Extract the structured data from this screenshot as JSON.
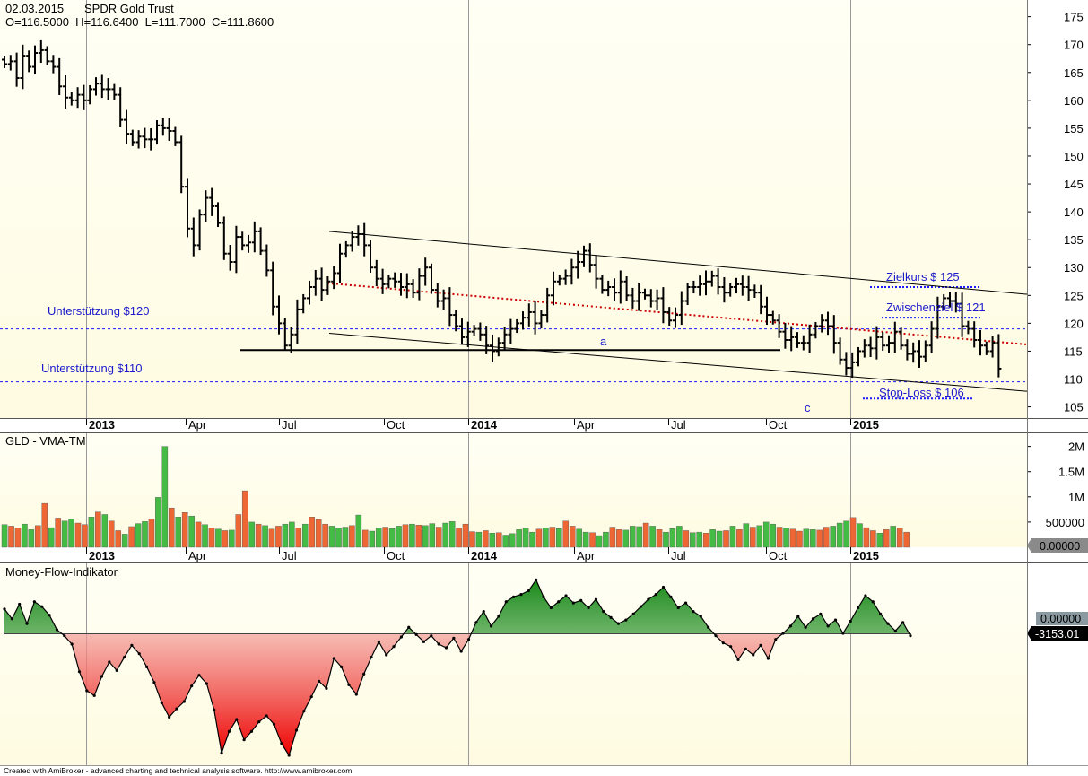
{
  "header": {
    "date": "02.03.2015",
    "symbol": "SPDR Gold Trust",
    "ohlc": "O=116.5000  H=116.6400  L=111.7000  C=111.8600"
  },
  "footer": {
    "credit": "Created with AmiBroker - advanced charting and technical analysis software. http://www.amibroker.com"
  },
  "colors": {
    "pane_background_top": "#fffff2",
    "pane_background_bottom": "#fffbe0",
    "bars": "#000000",
    "support_lines": "#1a1aff",
    "annotation_text": "#1a1acc",
    "trend_channel": "#000000",
    "mid_trend": "#cc0000",
    "volume_up": "#44bb44",
    "volume_down": "#ee6633",
    "mfi_positive": "#1a8a1a",
    "mfi_negative": "#e00000"
  },
  "chart_data": [
    {
      "type": "ohlc",
      "title": "SPDR Gold Trust",
      "x_tick_labels": [
        "2013",
        "Apr",
        "Jul",
        "Oct",
        "2014",
        "Apr",
        "Jul",
        "Oct",
        "2015"
      ],
      "x_major_labels": [
        "2013",
        "2014",
        "2015"
      ],
      "y_tick_labels": [
        "105",
        "110",
        "115",
        "120",
        "125",
        "130",
        "135",
        "140",
        "145",
        "150",
        "155",
        "160",
        "165",
        "170",
        "175"
      ],
      "ylim": [
        103,
        178
      ],
      "grid": "vertical lines at year starts",
      "series_close": [
        166.5,
        167.0,
        164.0,
        168.0,
        166.0,
        168.5,
        169.0,
        167.0,
        166.0,
        162.5,
        160.5,
        160.0,
        161.0,
        160.0,
        162.0,
        163.0,
        162.0,
        162.0,
        161.0,
        156.5,
        154.0,
        152.5,
        153.5,
        153.0,
        153.0,
        155.5,
        155.0,
        154.5,
        152.5,
        144.5,
        137.0,
        134.0,
        139.5,
        142.5,
        141.0,
        138.0,
        132.5,
        131.0,
        135.5,
        134.0,
        134.5,
        136.5,
        133.0,
        129.5,
        123.0,
        120.0,
        116.0,
        118.0,
        122.5,
        124.5,
        126.5,
        128.0,
        126.0,
        127.5,
        129.0,
        132.5,
        134.0,
        135.5,
        136.0,
        134.0,
        130.0,
        128.0,
        127.0,
        128.0,
        127.5,
        126.5,
        127.0,
        125.5,
        128.5,
        130.0,
        126.0,
        124.0,
        124.5,
        121.5,
        119.5,
        117.5,
        118.5,
        119.0,
        118.0,
        116.0,
        115.0,
        116.5,
        118.0,
        119.0,
        120.0,
        121.0,
        122.0,
        120.0,
        121.5,
        125.0,
        127.5,
        128.0,
        128.5,
        130.0,
        131.0,
        133.0,
        130.5,
        128.0,
        126.0,
        126.5,
        125.5,
        127.5,
        125.0,
        124.0,
        125.5,
        125.0,
        124.0,
        124.5,
        122.0,
        120.5,
        121.5,
        124.0,
        126.5,
        126.5,
        127.0,
        127.5,
        128.5,
        126.5,
        125.5,
        126.5,
        127.0,
        126.5,
        126.0,
        125.5,
        123.0,
        121.5,
        120.5,
        118.5,
        117.0,
        117.5,
        116.5,
        116.5,
        118.0,
        119.5,
        120.5,
        119.5,
        116.5,
        113.5,
        112.0,
        113.0,
        115.0,
        116.0,
        115.5,
        117.5,
        116.0,
        116.5,
        118.5,
        116.0,
        114.5,
        115.0,
        114.0,
        116.0,
        119.0,
        123.0,
        124.5,
        124.0,
        123.5,
        119.5,
        119.0,
        117.0,
        116.0,
        115.0,
        116.5,
        111.86
      ],
      "annotations": [
        {
          "text": "Unterstützung $120",
          "y": 119
        },
        {
          "text": "Unterstützung $110",
          "y": 109.5
        },
        {
          "text": "Zielkurs $ 125",
          "y": 126.5
        },
        {
          "text": "Zwischenziel $ 121",
          "y": 121.0
        },
        {
          "text": "Stop-Loss $ 106",
          "y": 106.5
        },
        {
          "text": "a",
          "y": 118
        },
        {
          "text": "c",
          "y": 106
        }
      ]
    },
    {
      "type": "bar",
      "title": "GLD - VMA-TM",
      "x_tick_labels": [
        "2013",
        "Apr",
        "Jul",
        "Oct",
        "2014",
        "Apr",
        "Jul",
        "Oct",
        "2015"
      ],
      "y_tick_labels": [
        "500000",
        "1M",
        "1.5M",
        "2M"
      ],
      "ylim": [
        0,
        2100000
      ],
      "readout": "0.00000",
      "values": [
        450000,
        420000,
        380000,
        460000,
        350000,
        430000,
        870000,
        390000,
        580000,
        520000,
        560000,
        480000,
        450000,
        600000,
        700000,
        650000,
        520000,
        330000,
        260000,
        410000,
        470000,
        510000,
        560000,
        990000,
        2000000,
        780000,
        600000,
        690000,
        620000,
        500000,
        450000,
        380000,
        360000,
        330000,
        340000,
        650000,
        1120000,
        500000,
        460000,
        430000,
        360000,
        420000,
        460000,
        500000,
        380000,
        460000,
        600000,
        550000,
        460000,
        420000,
        380000,
        400000,
        430000,
        640000,
        340000,
        320000,
        380000,
        400000,
        370000,
        420000,
        450000,
        460000,
        440000,
        430000,
        470000,
        400000,
        480000,
        510000,
        380000,
        460000,
        310000,
        300000,
        330000,
        280000,
        290000,
        240000,
        270000,
        350000,
        380000,
        300000,
        360000,
        380000,
        400000,
        370000,
        520000,
        420000,
        360000,
        300000,
        290000,
        230000,
        300000,
        400000,
        350000,
        340000,
        420000,
        410000,
        480000,
        420000,
        350000,
        300000,
        370000,
        420000,
        330000,
        290000,
        300000,
        280000,
        350000,
        320000,
        330000,
        420000,
        350000,
        470000,
        400000,
        430000,
        500000,
        460000,
        400000,
        380000,
        360000,
        320000,
        360000,
        350000,
        340000,
        400000,
        420000,
        480000,
        520000,
        590000,
        470000,
        390000,
        330000,
        280000,
        350000,
        420000,
        380000,
        300000
      ],
      "up": [
        1,
        0,
        0,
        1,
        1,
        0,
        0,
        1,
        0,
        1,
        1,
        0,
        0,
        1,
        0,
        1,
        0,
        0,
        1,
        0,
        1,
        1,
        0,
        1,
        1,
        0,
        1,
        0,
        1,
        0,
        1,
        0,
        1,
        0,
        1,
        0,
        0,
        1,
        0,
        1,
        0,
        0,
        1,
        1,
        0,
        1,
        0,
        0,
        0,
        1,
        1,
        1,
        0,
        1,
        0,
        1,
        1,
        0,
        1,
        1,
        0,
        1,
        0,
        1,
        1,
        0,
        1,
        1,
        0,
        0,
        0,
        1,
        0,
        1,
        0,
        1,
        1,
        1,
        1,
        1,
        0,
        1,
        0,
        1,
        0,
        0,
        1,
        1,
        0,
        1,
        1,
        0,
        0,
        1,
        1,
        1,
        0,
        1,
        0,
        1,
        1,
        1,
        0,
        1,
        1,
        0,
        1,
        1,
        0,
        1,
        0,
        1,
        0,
        1,
        1,
        1,
        0,
        1,
        0,
        0,
        1,
        1,
        0,
        0,
        1,
        1,
        1,
        0,
        1,
        0,
        0,
        1,
        0,
        1,
        0,
        0
      ]
    },
    {
      "type": "area",
      "title": "Money-Flow-Indikator",
      "readout_zero": "0.00000",
      "readout_value": "-3153.01",
      "ylim": [
        -10500,
        4500
      ],
      "values": [
        2000,
        1200,
        2400,
        800,
        2600,
        2200,
        1500,
        300,
        -200,
        -900,
        -3200,
        -4800,
        -5200,
        -3600,
        -2400,
        -3100,
        -2000,
        -1000,
        -1700,
        -2800,
        -4100,
        -5800,
        -7000,
        -6300,
        -5700,
        -4400,
        -3500,
        -4200,
        -6400,
        -10000,
        -8200,
        -7200,
        -8900,
        -8200,
        -7400,
        -6900,
        -7600,
        -9200,
        -10200,
        -8100,
        -6500,
        -5300,
        -4000,
        -4600,
        -2100,
        -2800,
        -4300,
        -5100,
        -3400,
        -2000,
        -700,
        -1800,
        -1100,
        -300,
        500,
        -100,
        -700,
        -200,
        -900,
        -1200,
        -400,
        -1500,
        -500,
        900,
        1800,
        600,
        1400,
        2600,
        3000,
        3200,
        3500,
        4400,
        3000,
        2100,
        2600,
        3100,
        2500,
        2700,
        2100,
        2800,
        1800,
        1300,
        800,
        1100,
        1600,
        2200,
        2800,
        3200,
        3800,
        3000,
        2100,
        2500,
        1800,
        1400,
        500,
        -200,
        -800,
        -1100,
        -2200,
        -1300,
        -1800,
        -1000,
        -2100,
        -500,
        0,
        600,
        1400,
        500,
        1200,
        1600,
        600,
        1100,
        0,
        1000,
        2100,
        3100,
        2600,
        1600,
        800,
        200,
        900,
        -200
      ]
    }
  ]
}
